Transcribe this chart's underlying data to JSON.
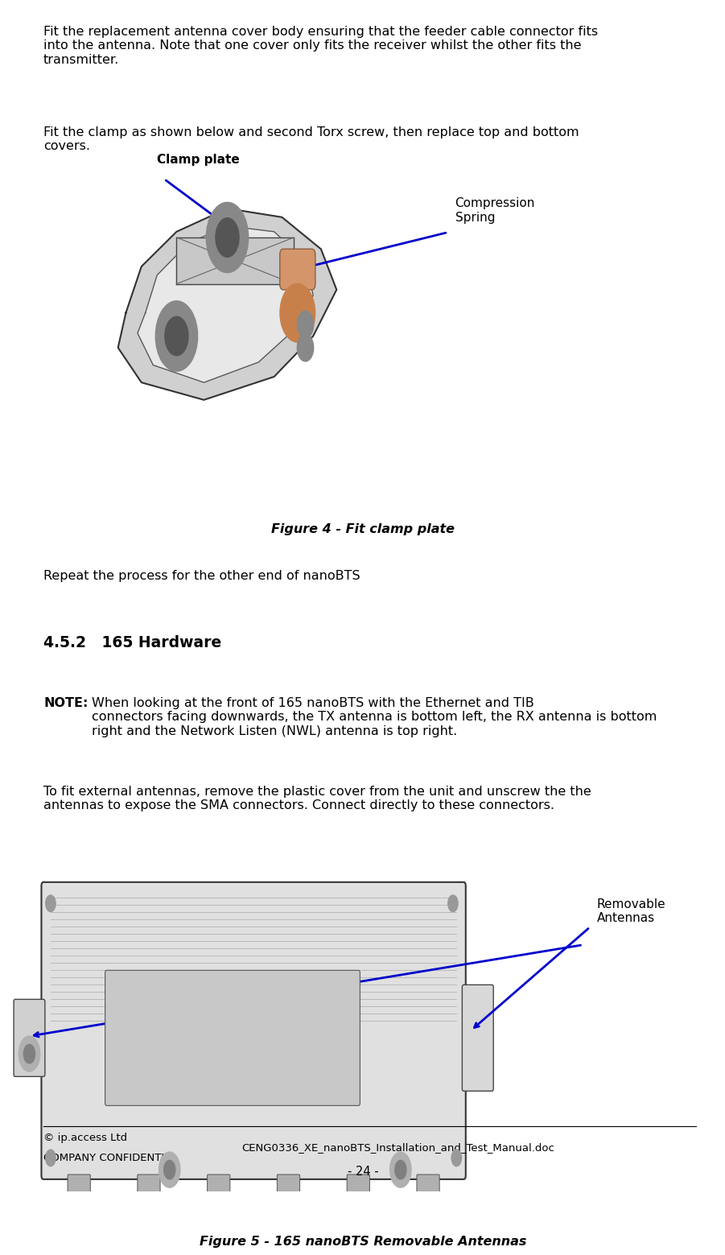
{
  "page_width": 9.41,
  "page_height": 15.29,
  "bg_color": "#ffffff",
  "text_color": "#000000",
  "body_font_size": 11.5,
  "para1": "Fit the replacement antenna cover body ensuring that the feeder cable connector fits\ninto the antenna. Note that one cover only fits the receiver whilst the other fits the\ntransmitter.",
  "para2": "Fit the clamp as shown below and second Torx screw, then replace top and bottom\ncovers.",
  "label_clamp": "Clamp plate",
  "label_compression": "Compression\nSpring",
  "fig4_caption": "Figure 4 - Fit clamp plate",
  "para3": "Repeat the process for the other end of nanoBTS",
  "section_title": "4.5.2   165 Hardware",
  "note_label": "NOTE:",
  "note_text": " When looking at the front of 165 nanoBTS with the Ethernet and TIB\nconnectors facing downwards, the TX antenna is bottom left, the RX antenna is bottom\nright and the Network Listen (NWL) antenna is top right.",
  "para4": "To fit external antennas, remove the plastic cover from the unit and unscrew the the\nantennas to expose the SMA connectors. Connect directly to these connectors.",
  "label_removable": "Removable\nAntennas",
  "fig5_caption": "Figure 5 - 165 nanoBTS Removable Antennas",
  "footer_left1": "© ip.access Ltd",
  "footer_left2": "COMPANY CONFIDENTIAL",
  "footer_center": "CENG0336_XE_nanoBTS_Installation_and_Test_Manual.doc",
  "footer_page": "- 24 -",
  "arrow_color": "#0000cc",
  "label_font_size": 11.0,
  "caption_font_size": 11.5,
  "section_font_size": 13.5,
  "footer_font_size": 9.5
}
